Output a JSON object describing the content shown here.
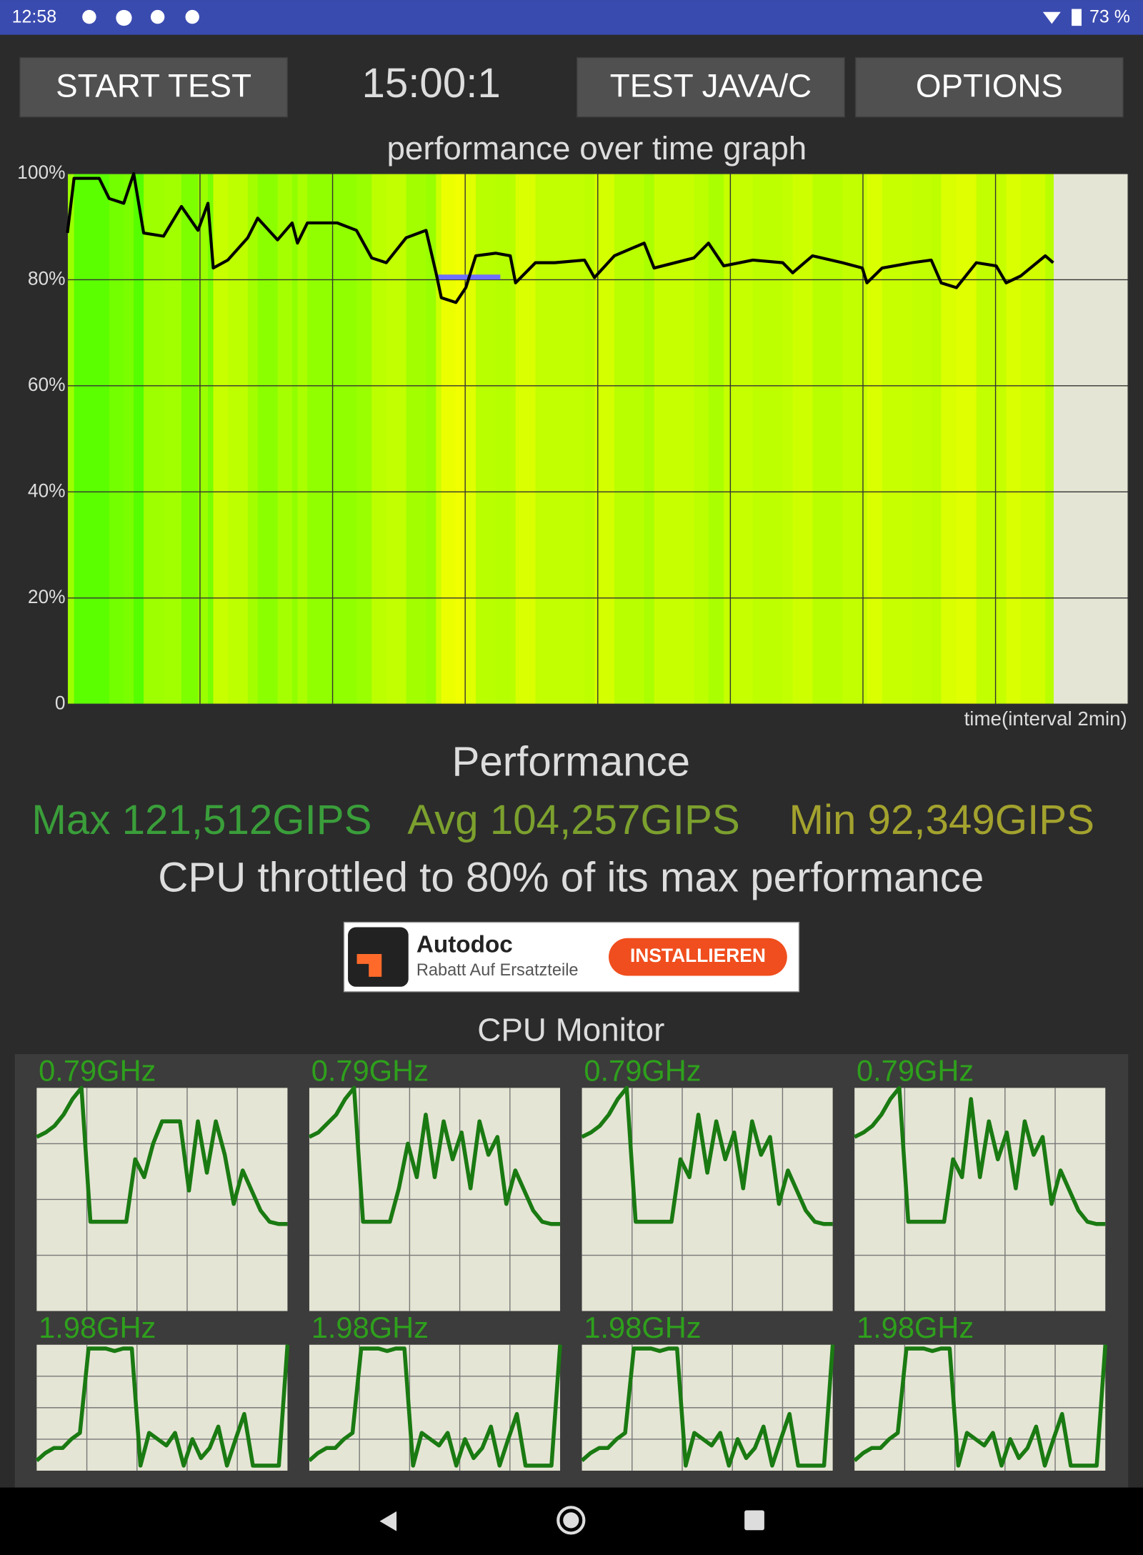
{
  "status_bar": {
    "time": "12:58",
    "battery": "73 %"
  },
  "buttons": {
    "start": "START TEST",
    "timer": "15:00:1",
    "java": "TEST JAVA/C",
    "options": "OPTIONS"
  },
  "chart_data": [
    {
      "type": "line",
      "title": "performance over time graph",
      "x_label": "time(interval 2min)",
      "color": "#000000",
      "x": [
        0,
        0.1,
        0.48,
        0.63,
        0.85,
        1.0,
        1.15,
        1.45,
        1.72,
        1.97,
        2.12,
        2.2,
        2.42,
        2.72,
        2.87,
        3.17,
        3.39,
        3.47,
        3.62,
        4.07,
        4.36,
        4.59,
        4.81,
        5.11,
        5.41,
        5.56,
        5.64,
        5.86,
        6.01,
        6.16,
        6.46,
        6.68,
        6.76,
        7.06,
        7.35,
        7.8,
        7.95,
        8.25,
        8.7,
        8.85,
        9.45,
        9.67,
        9.9,
        10.34,
        10.79,
        10.94,
        11.24,
        11.69,
        11.99,
        12.06,
        12.29,
        12.74,
        13.03,
        13.18,
        13.41,
        13.71,
        14.01,
        14.16,
        14.38,
        14.75,
        14.87
      ],
      "values": [
        88.8,
        99.1,
        99.1,
        95.3,
        94.4,
        100,
        88.8,
        88.2,
        93.8,
        89.3,
        94.4,
        82.2,
        83.7,
        87.9,
        91.6,
        87.5,
        90.7,
        86.9,
        90.7,
        90.7,
        89.3,
        84.1,
        83.2,
        87.9,
        89.3,
        81.3,
        76.6,
        75.7,
        78.5,
        84.5,
        85.0,
        84.5,
        79.4,
        83.2,
        83.2,
        83.7,
        80.4,
        84.5,
        86.9,
        82.2,
        84.1,
        86.9,
        82.6,
        83.7,
        83.2,
        81.3,
        84.5,
        83.2,
        82.2,
        79.4,
        82.2,
        83.2,
        83.7,
        79.4,
        78.5,
        83.2,
        82.6,
        79.4,
        80.7,
        84.5,
        83.2
      ],
      "reference_line": {
        "color": "#6f6fff",
        "x": [
          5.56,
          6.53
        ],
        "value": 80.5
      },
      "xlim": [
        0,
        16
      ],
      "xticks": [
        0,
        2,
        4,
        6,
        8,
        10,
        12,
        14,
        16
      ],
      "ylim": [
        0,
        100
      ],
      "yticks": [
        0,
        {
          "value": 20,
          "label": "20%"
        },
        {
          "value": 40,
          "label": "40%"
        },
        {
          "value": 60,
          "label": "60%"
        },
        {
          "value": 80,
          "label": "80%"
        },
        {
          "value": 100,
          "label": "100%"
        }
      ],
      "grid": true
    },
    {
      "type": "line",
      "title": "0.79GHz",
      "color": "#1a7a12",
      "ylim": [
        0,
        100
      ],
      "values": [
        78,
        80,
        83,
        88,
        95,
        100,
        40,
        40,
        40,
        40,
        40,
        68,
        60,
        75,
        85,
        85,
        85,
        54,
        85,
        62,
        85,
        70,
        48,
        63,
        54,
        45,
        40,
        39,
        39
      ]
    },
    {
      "type": "line",
      "title": "0.79GHz",
      "color": "#1a7a12",
      "ylim": [
        0,
        100
      ],
      "values": [
        78,
        80,
        84,
        88,
        95,
        100,
        40,
        40,
        40,
        40,
        55,
        75,
        60,
        88,
        60,
        85,
        68,
        80,
        55,
        85,
        70,
        78,
        48,
        63,
        54,
        45,
        40,
        39,
        39
      ]
    },
    {
      "type": "line",
      "title": "0.79GHz",
      "color": "#1a7a12",
      "ylim": [
        0,
        100
      ],
      "values": [
        78,
        80,
        83,
        88,
        95,
        100,
        40,
        40,
        40,
        40,
        40,
        68,
        60,
        88,
        62,
        85,
        68,
        80,
        55,
        85,
        70,
        78,
        48,
        63,
        54,
        45,
        40,
        39,
        39
      ]
    },
    {
      "type": "line",
      "title": "0.79GHz",
      "color": "#1a7a12",
      "ylim": [
        0,
        100
      ],
      "values": [
        78,
        80,
        83,
        88,
        95,
        100,
        40,
        40,
        40,
        40,
        40,
        68,
        60,
        95,
        60,
        85,
        68,
        80,
        55,
        85,
        70,
        78,
        48,
        63,
        54,
        45,
        40,
        39,
        39
      ]
    },
    {
      "type": "line",
      "title": "1.98GHz",
      "color": "#1a7a12",
      "ylim": [
        0,
        100
      ],
      "values": [
        8,
        14,
        18,
        18,
        25,
        30,
        97,
        97,
        97,
        95,
        97,
        97,
        4,
        30,
        25,
        20,
        30,
        4,
        25,
        10,
        18,
        35,
        4,
        25,
        45,
        4,
        4,
        4,
        4,
        100
      ]
    },
    {
      "type": "line",
      "title": "1.98GHz",
      "color": "#1a7a12",
      "ylim": [
        0,
        100
      ],
      "values": [
        8,
        14,
        18,
        18,
        25,
        30,
        97,
        97,
        97,
        95,
        97,
        97,
        4,
        30,
        25,
        20,
        30,
        4,
        25,
        10,
        18,
        35,
        4,
        25,
        45,
        4,
        4,
        4,
        4,
        100
      ]
    },
    {
      "type": "line",
      "title": "1.98GHz",
      "color": "#1a7a12",
      "ylim": [
        0,
        100
      ],
      "values": [
        8,
        14,
        18,
        18,
        25,
        30,
        97,
        97,
        97,
        95,
        97,
        97,
        4,
        30,
        25,
        20,
        30,
        4,
        25,
        10,
        18,
        35,
        4,
        25,
        45,
        4,
        4,
        4,
        4,
        100
      ]
    },
    {
      "type": "line",
      "title": "1.98GHz",
      "color": "#1a7a12",
      "ylim": [
        0,
        100
      ],
      "values": [
        8,
        14,
        18,
        18,
        25,
        30,
        97,
        97,
        97,
        95,
        97,
        97,
        4,
        30,
        25,
        20,
        30,
        4,
        25,
        10,
        18,
        35,
        4,
        25,
        45,
        4,
        4,
        4,
        4,
        100
      ]
    }
  ],
  "performance": {
    "title": "Performance",
    "max": "Max 121,512GIPS",
    "avg": "Avg 104,257GIPS",
    "min": "Min 92,349GIPS",
    "summary": "CPU throttled to 80% of its max performance"
  },
  "ad": {
    "name": "Autodoc",
    "tagline": "Rabatt Auf Ersatzteile",
    "button": "INSTALLIEREN"
  },
  "cpu_monitor": {
    "title": "CPU Monitor"
  }
}
